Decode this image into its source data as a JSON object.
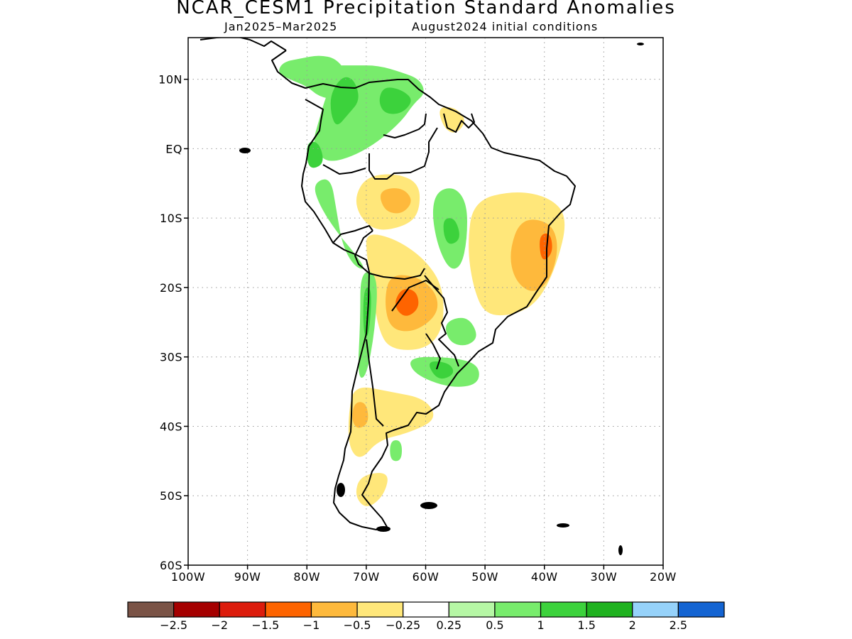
{
  "title": "NCAR_CESM1 Precipitation Standard Anomalies",
  "period": "Jan2025–Mar2025",
  "initial_conditions": "August2024 initial conditions",
  "map": {
    "lon_range": [
      -100,
      -20
    ],
    "lat_range": [
      -60,
      16
    ],
    "lat_ticks": [
      "10N",
      "EQ",
      "10S",
      "20S",
      "30S",
      "40S",
      "50S",
      "60S"
    ],
    "lon_ticks": [
      "100W",
      "90W",
      "80W",
      "70W",
      "60W",
      "50W",
      "40W",
      "30W",
      "20W"
    ],
    "grid": "dotted"
  },
  "colorbar": {
    "colors": [
      "#7a5346",
      "#a50000",
      "#dc1c0c",
      "#fe6400",
      "#feb93c",
      "#ffe77a",
      "#ffffff",
      "#b6f7a5",
      "#78ec6c",
      "#3cd23c",
      "#1fb21f",
      "#96d2fa",
      "#1464d2"
    ],
    "labels": [
      "−2.5",
      "−2",
      "−1.5",
      "−1",
      "−0.5",
      "−0.25",
      "0.25",
      "0.5",
      "1",
      "1.5",
      "2",
      "2.5"
    ]
  },
  "anomaly_regions": [
    {
      "name": "central-america",
      "level": 0.5,
      "pts": [
        [
          -78,
          13.5
        ],
        [
          -75,
          13
        ],
        [
          -73,
          10.5
        ],
        [
          -73,
          8
        ],
        [
          -75,
          7
        ],
        [
          -78,
          7.5
        ],
        [
          -80,
          9
        ],
        [
          -83,
          10
        ],
        [
          -85,
          11
        ],
        [
          -84,
          12.5
        ],
        [
          -81,
          13
        ]
      ]
    },
    {
      "name": "colombia-venezuela",
      "level": 0.5,
      "pts": [
        [
          -76,
          12
        ],
        [
          -72,
          12
        ],
        [
          -68,
          12
        ],
        [
          -64,
          11
        ],
        [
          -61,
          10
        ],
        [
          -60,
          8
        ],
        [
          -62,
          6.5
        ],
        [
          -64,
          4
        ],
        [
          -68,
          1
        ],
        [
          -72,
          -1
        ],
        [
          -76,
          -2
        ],
        [
          -78,
          -1
        ],
        [
          -79,
          1
        ],
        [
          -78,
          4
        ],
        [
          -77,
          7
        ],
        [
          -76,
          9
        ]
      ]
    },
    {
      "name": "colombia-core",
      "level": 1,
      "pts": [
        [
          -74,
          10.5
        ],
        [
          -72,
          10
        ],
        [
          -71,
          7
        ],
        [
          -73,
          5
        ],
        [
          -75,
          3
        ],
        [
          -76,
          5
        ],
        [
          -76,
          8
        ]
      ]
    },
    {
      "name": "venezuela-core",
      "level": 1,
      "pts": [
        [
          -67,
          9
        ],
        [
          -64,
          8.5
        ],
        [
          -62,
          7
        ],
        [
          -64,
          5
        ],
        [
          -67,
          5
        ],
        [
          -68,
          7
        ]
      ]
    },
    {
      "name": "guianas-dry",
      "level": -0.25,
      "pts": [
        [
          -60,
          8
        ],
        [
          -55,
          7
        ],
        [
          -52,
          5
        ],
        [
          -51,
          2
        ],
        [
          -53,
          0
        ],
        [
          -56,
          1.5
        ],
        [
          -59,
          4
        ]
      ]
    },
    {
      "name": "guianas-core",
      "level": -0.5,
      "pts": [
        [
          -58,
          6
        ],
        [
          -55,
          6
        ],
        [
          -53,
          4
        ],
        [
          -55,
          2
        ],
        [
          -57,
          3
        ]
      ]
    },
    {
      "name": "ecuador-wet",
      "level": 1,
      "pts": [
        [
          -80,
          1
        ],
        [
          -78,
          1
        ],
        [
          -77,
          -2
        ],
        [
          -79,
          -3
        ],
        [
          -80,
          -2
        ]
      ]
    },
    {
      "name": "peru-coast",
      "level": 0.5,
      "pts": [
        [
          -79,
          -5
        ],
        [
          -76,
          -4
        ],
        [
          -75,
          -9
        ],
        [
          -74,
          -14
        ],
        [
          -72,
          -17
        ],
        [
          -70,
          -17.5
        ],
        [
          -72,
          -15
        ],
        [
          -75,
          -12
        ],
        [
          -78,
          -8
        ]
      ]
    },
    {
      "name": "amazon-dry",
      "level": -0.5,
      "pts": [
        [
          -70,
          -4
        ],
        [
          -65,
          -3.5
        ],
        [
          -61,
          -5
        ],
        [
          -61,
          -9
        ],
        [
          -63,
          -11
        ],
        [
          -68,
          -12
        ],
        [
          -71,
          -10
        ],
        [
          -72,
          -7
        ]
      ]
    },
    {
      "name": "amazon-core",
      "level": -1,
      "pts": [
        [
          -68,
          -6
        ],
        [
          -64,
          -5.5
        ],
        [
          -62,
          -7.5
        ],
        [
          -64,
          -9.5
        ],
        [
          -67,
          -9
        ]
      ]
    },
    {
      "name": "central-brazil-wet",
      "level": 0.5,
      "pts": [
        [
          -58,
          -6
        ],
        [
          -55,
          -5.5
        ],
        [
          -53,
          -8
        ],
        [
          -53,
          -13
        ],
        [
          -54,
          -17
        ],
        [
          -56,
          -17.5
        ],
        [
          -58,
          -14
        ],
        [
          -59,
          -9
        ]
      ]
    },
    {
      "name": "central-brazil-core",
      "level": 1,
      "pts": [
        [
          -57,
          -10
        ],
        [
          -55,
          -10
        ],
        [
          -54,
          -13
        ],
        [
          -56,
          -14
        ],
        [
          -57,
          -12.5
        ]
      ]
    },
    {
      "name": "east-brazil-dry",
      "level": -0.5,
      "pts": [
        [
          -52,
          -7.5
        ],
        [
          -45,
          -6
        ],
        [
          -39,
          -7
        ],
        [
          -36,
          -10
        ],
        [
          -38,
          -17
        ],
        [
          -41,
          -22
        ],
        [
          -45,
          -24
        ],
        [
          -50,
          -24
        ],
        [
          -52,
          -20
        ],
        [
          -53,
          -14
        ]
      ]
    },
    {
      "name": "east-brazil-core",
      "level": -1,
      "pts": [
        [
          -44,
          -10
        ],
        [
          -39,
          -10.5
        ],
        [
          -37.5,
          -14
        ],
        [
          -39,
          -19
        ],
        [
          -42,
          -21
        ],
        [
          -45,
          -19
        ],
        [
          -46,
          -15
        ]
      ]
    },
    {
      "name": "east-brazil-peak",
      "level": -1.5,
      "pts": [
        [
          -41,
          -12.5
        ],
        [
          -39,
          -12
        ],
        [
          -38.5,
          -15
        ],
        [
          -40.5,
          -16.5
        ]
      ]
    },
    {
      "name": "bolivia-dry",
      "level": -0.5,
      "pts": [
        [
          -70,
          -12
        ],
        [
          -65,
          -13
        ],
        [
          -60,
          -16
        ],
        [
          -57,
          -20
        ],
        [
          -57,
          -26
        ],
        [
          -60,
          -29
        ],
        [
          -66,
          -29
        ],
        [
          -68,
          -26
        ],
        [
          -69,
          -20
        ],
        [
          -70,
          -15
        ]
      ]
    },
    {
      "name": "bolivia-core",
      "level": -1,
      "pts": [
        [
          -66,
          -18
        ],
        [
          -61,
          -18.5
        ],
        [
          -58,
          -21
        ],
        [
          -58,
          -24
        ],
        [
          -62,
          -26.5
        ],
        [
          -66,
          -26
        ],
        [
          -67,
          -22
        ]
      ]
    },
    {
      "name": "bolivia-peak",
      "level": -1.5,
      "pts": [
        [
          -64,
          -20
        ],
        [
          -61.5,
          -20.5
        ],
        [
          -61,
          -23
        ],
        [
          -63.5,
          -24.5
        ],
        [
          -65.5,
          -22.5
        ]
      ]
    },
    {
      "name": "chile-north-wet",
      "level": 0.5,
      "pts": [
        [
          -71,
          -17.5
        ],
        [
          -68,
          -18
        ],
        [
          -68.5,
          -26
        ],
        [
          -70,
          -33
        ],
        [
          -71.5,
          -33
        ],
        [
          -71,
          -25
        ]
      ]
    },
    {
      "name": "chile-north-core",
      "level": 1,
      "pts": [
        [
          -70.5,
          -20
        ],
        [
          -69,
          -20
        ],
        [
          -69.5,
          -27
        ],
        [
          -70.5,
          -27
        ]
      ]
    },
    {
      "name": "paraguay-wet",
      "level": 0.5,
      "pts": [
        [
          -57,
          -25
        ],
        [
          -53,
          -24
        ],
        [
          -51,
          -27
        ],
        [
          -53,
          -28.5
        ],
        [
          -56,
          -28
        ]
      ]
    },
    {
      "name": "south-brazil-wet",
      "level": 0.5,
      "pts": [
        [
          -63,
          -30
        ],
        [
          -56,
          -30
        ],
        [
          -51,
          -31
        ],
        [
          -51,
          -34
        ],
        [
          -56,
          -34.5
        ],
        [
          -62,
          -32.5
        ]
      ]
    },
    {
      "name": "south-brazil-core",
      "level": 1,
      "pts": [
        [
          -60,
          -30.5
        ],
        [
          -56,
          -30.8
        ],
        [
          -55,
          -32.5
        ],
        [
          -58,
          -33.5
        ]
      ]
    },
    {
      "name": "argentina-dry",
      "level": -0.5,
      "pts": [
        [
          -72,
          -34
        ],
        [
          -66,
          -35
        ],
        [
          -60,
          -36
        ],
        [
          -58,
          -39
        ],
        [
          -63,
          -41
        ],
        [
          -68,
          -42
        ],
        [
          -71,
          -45
        ],
        [
          -73,
          -43
        ],
        [
          -73,
          -38
        ]
      ]
    },
    {
      "name": "argentina-core",
      "level": -1,
      "pts": [
        [
          -72,
          -36.5
        ],
        [
          -70,
          -36.5
        ],
        [
          -69.5,
          -39.5
        ],
        [
          -71.5,
          -40.5
        ],
        [
          -72.5,
          -39
        ]
      ]
    },
    {
      "name": "patagonia-dry",
      "level": -0.5,
      "pts": [
        [
          -71,
          -47
        ],
        [
          -66,
          -46.5
        ],
        [
          -67,
          -50
        ],
        [
          -70,
          -52
        ],
        [
          -72,
          -50
        ]
      ]
    },
    {
      "name": "patagonia-wet",
      "level": 0.5,
      "pts": [
        [
          -66,
          -42
        ],
        [
          -64,
          -42
        ],
        [
          -64,
          -45
        ],
        [
          -66,
          -45
        ]
      ]
    }
  ]
}
